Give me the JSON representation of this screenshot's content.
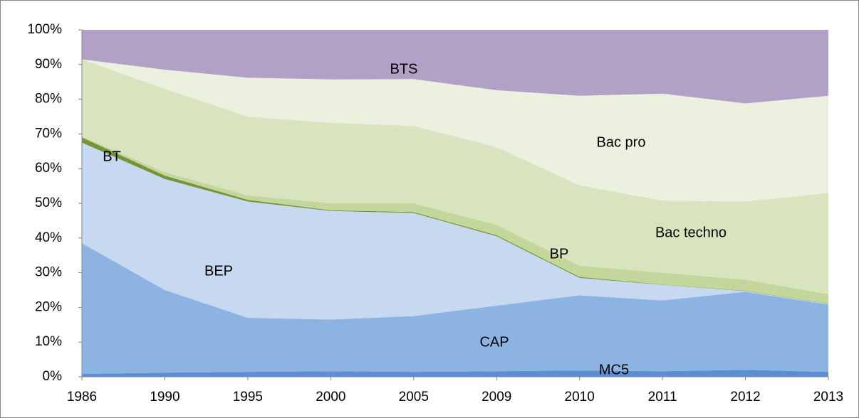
{
  "chart_data": {
    "type": "area",
    "stacked": true,
    "categories": [
      "1986",
      "1990",
      "1995",
      "2000",
      "2005",
      "2009",
      "2010",
      "2011",
      "2012",
      "2013"
    ],
    "series": [
      {
        "name": "MC5",
        "color": "#5b8fd4",
        "values": [
          0.8,
          1.2,
          1.4,
          1.6,
          1.4,
          1.6,
          1.8,
          1.6,
          2.0,
          1.4
        ]
      },
      {
        "name": "CAP",
        "color": "#8db3e2",
        "values": [
          37.7,
          23.8,
          15.6,
          14.9,
          16.1,
          18.9,
          21.7,
          20.4,
          22.5,
          19.4
        ]
      },
      {
        "name": "BEP",
        "color": "#c6d9f1",
        "values": [
          29,
          32,
          33.5,
          31.3,
          29.7,
          20,
          5,
          4.5,
          0.2,
          0.2
        ]
      },
      {
        "name": "BT",
        "color": "#77933c",
        "values": [
          1.5,
          1,
          0.5,
          0.2,
          0.3,
          0.3,
          0.3,
          0.1,
          0.1,
          0.1
        ]
      },
      {
        "name": "BP",
        "color": "#c3d69b",
        "values": [
          0.2,
          1,
          1.3,
          2,
          2.5,
          3,
          3.2,
          3.4,
          3.2,
          2.7
        ]
      },
      {
        "name": "Bac techno",
        "color": "#d7e4bd",
        "values": [
          22.3,
          24,
          22.7,
          23.2,
          22.3,
          22.4,
          23.2,
          20.8,
          22.5,
          29.2
        ]
      },
      {
        "name": "Bac pro",
        "color": "#ebf1de",
        "values": [
          0,
          5.5,
          11.2,
          12.5,
          13.5,
          16.4,
          25.8,
          30.8,
          28.3,
          28
        ]
      },
      {
        "name": "BTS",
        "color": "#b2a1c7",
        "values": [
          8.5,
          11.5,
          13.8,
          14.3,
          14.2,
          17.4,
          19,
          18.4,
          21.2,
          19
        ]
      }
    ],
    "ylim": [
      0,
      100
    ],
    "yticks": [
      {
        "value": 0,
        "label": "0%"
      },
      {
        "value": 10,
        "label": "10%"
      },
      {
        "value": 20,
        "label": "20%"
      },
      {
        "value": 30,
        "label": "30%"
      },
      {
        "value": 40,
        "label": "40%"
      },
      {
        "value": 50,
        "label": "50%"
      },
      {
        "value": 60,
        "label": "60%"
      },
      {
        "value": 70,
        "label": "70%"
      },
      {
        "value": 80,
        "label": "80%"
      },
      {
        "value": 90,
        "label": "90%"
      },
      {
        "value": 100,
        "label": "100%"
      }
    ]
  }
}
